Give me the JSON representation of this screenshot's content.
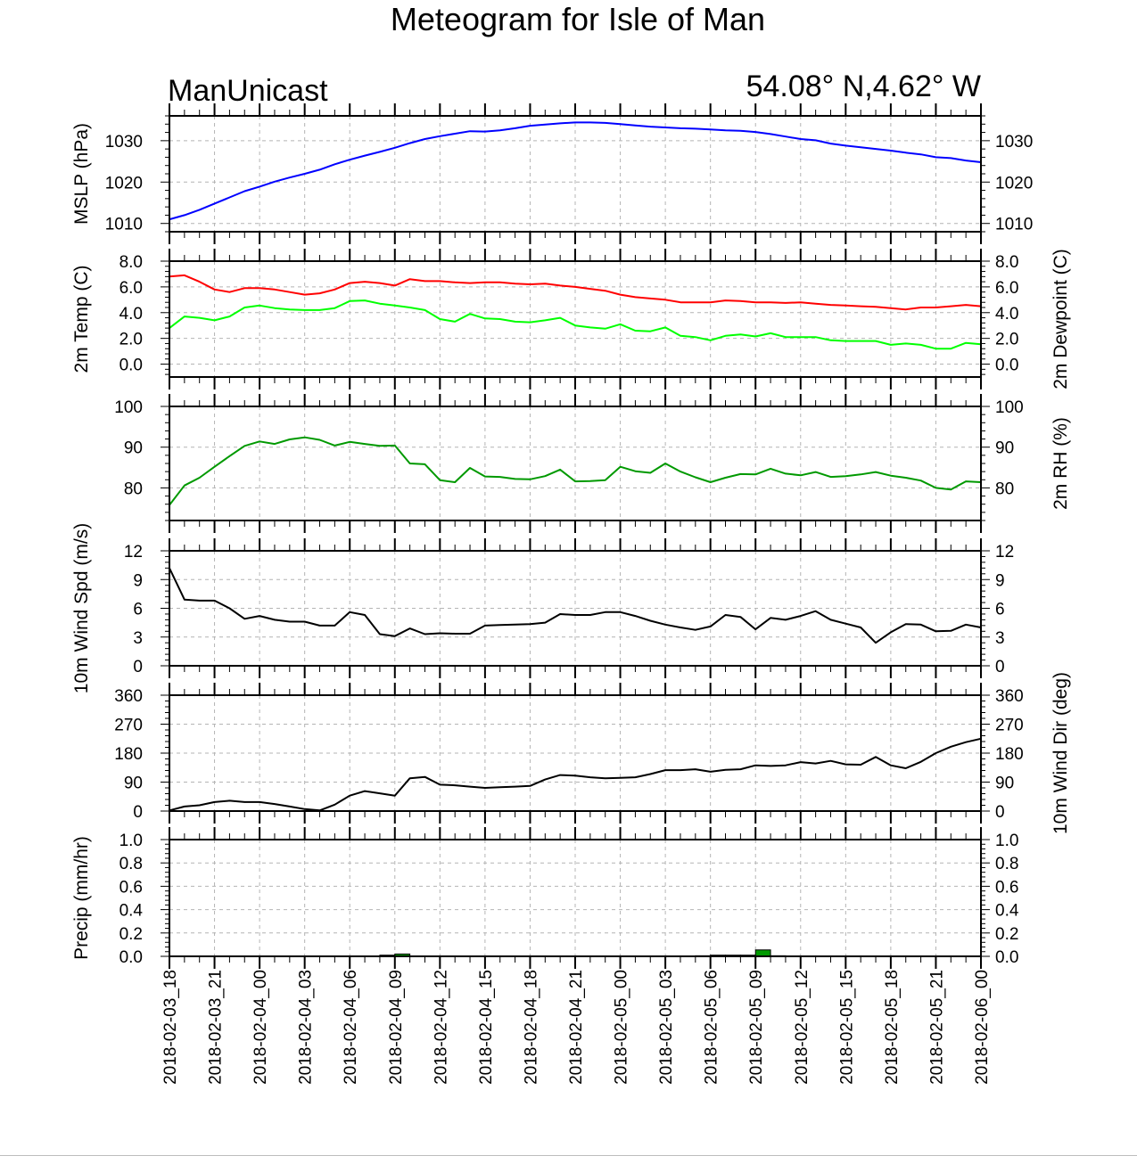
{
  "title": "Meteogram for Isle of Man",
  "model": "ManUnicast",
  "location": "54.08° N,4.62° W",
  "x_tick_labels": [
    "2018-02-03_18",
    "2018-02-03_21",
    "2018-02-04_00",
    "2018-02-04_03",
    "2018-02-04_06",
    "2018-02-04_09",
    "2018-02-04_12",
    "2018-02-04_15",
    "2018-02-04_18",
    "2018-02-04_21",
    "2018-02-05_00",
    "2018-02-05_03",
    "2018-02-05_06",
    "2018-02-05_09",
    "2018-02-05_12",
    "2018-02-05_15",
    "2018-02-05_18",
    "2018-02-05_21",
    "2018-02-06_00"
  ],
  "chart_data": [
    {
      "type": "line",
      "panel": "mslp",
      "ylabel": "MSLP (hPa)",
      "ylim": [
        1008,
        1036
      ],
      "ticks": [
        1010,
        1020,
        1030
      ],
      "tick_labels": [
        "1010",
        "1020",
        "1030"
      ],
      "grid": true,
      "x_hours": [
        0,
        1,
        2,
        3,
        4,
        5,
        6,
        7,
        8,
        9,
        10,
        11,
        12,
        13,
        14,
        15,
        16,
        17,
        18,
        19,
        20,
        21,
        22,
        23,
        24,
        25,
        26,
        27,
        28,
        29,
        30,
        31,
        32,
        33,
        34,
        35,
        36,
        37,
        38,
        39,
        40,
        41,
        42,
        43,
        44,
        45,
        46,
        47,
        48,
        49,
        50,
        51,
        52,
        53,
        54
      ],
      "series": [
        {
          "color": "#0000ff",
          "values": [
            1011,
            1012,
            1013.3,
            1014.8,
            1016.3,
            1017.8,
            1018.9,
            1020.1,
            1021.1,
            1022,
            1023,
            1024.3,
            1025.4,
            1026.4,
            1027.3,
            1028.3,
            1029.4,
            1030.4,
            1031.1,
            1031.7,
            1032.3,
            1032.2,
            1032.5,
            1033,
            1033.6,
            1033.9,
            1034.2,
            1034.4,
            1034.4,
            1034.3,
            1034,
            1033.7,
            1033.4,
            1033.2,
            1033,
            1032.9,
            1032.7,
            1032.5,
            1032.4,
            1032.1,
            1031.6,
            1031,
            1030.4,
            1030.1,
            1029.3,
            1028.8,
            1028.4,
            1028,
            1027.6,
            1027.1,
            1026.7,
            1026,
            1025.8,
            1025.2,
            1024.8
          ]
        }
      ]
    },
    {
      "type": "line",
      "panel": "temp",
      "ylabel": "2m Temp (C)",
      "ylabel_right": "2m Dewpoint (C)",
      "ylim": [
        -1,
        8
      ],
      "ticks": [
        0,
        2,
        4,
        6,
        8
      ],
      "tick_labels": [
        "0.0",
        "2.0",
        "4.0",
        "6.0",
        "8.0"
      ],
      "grid": true,
      "x_hours": [
        0,
        1,
        2,
        3,
        4,
        5,
        6,
        7,
        8,
        9,
        10,
        11,
        12,
        13,
        14,
        15,
        16,
        17,
        18,
        19,
        20,
        21,
        22,
        23,
        24,
        25,
        26,
        27,
        28,
        29,
        30,
        31,
        32,
        33,
        34,
        35,
        36,
        37,
        38,
        39,
        40,
        41,
        42,
        43,
        44,
        45,
        46,
        47,
        48,
        49,
        50,
        51,
        52,
        53,
        54
      ],
      "series": [
        {
          "color": "#ff0000",
          "values": [
            6.8,
            6.9,
            6.4,
            5.8,
            5.6,
            5.9,
            5.9,
            5.8,
            5.6,
            5.4,
            5.5,
            5.8,
            6.3,
            6.4,
            6.3,
            6.1,
            6.6,
            6.45,
            6.45,
            6.35,
            6.3,
            6.35,
            6.35,
            6.25,
            6.2,
            6.25,
            6.1,
            6.0,
            5.85,
            5.7,
            5.4,
            5.2,
            5.1,
            5.0,
            4.8,
            4.8,
            4.8,
            4.95,
            4.9,
            4.8,
            4.8,
            4.75,
            4.8,
            4.7,
            4.6,
            4.55,
            4.5,
            4.45,
            4.35,
            4.25,
            4.4,
            4.4,
            4.5,
            4.6,
            4.5
          ]
        },
        {
          "color": "#00ff00",
          "values": [
            2.8,
            3.7,
            3.6,
            3.4,
            3.7,
            4.4,
            4.55,
            4.35,
            4.25,
            4.2,
            4.2,
            4.35,
            4.9,
            4.95,
            4.7,
            4.55,
            4.4,
            4.2,
            3.5,
            3.3,
            3.9,
            3.55,
            3.5,
            3.3,
            3.25,
            3.4,
            3.6,
            3.0,
            2.85,
            2.75,
            3.1,
            2.6,
            2.55,
            2.85,
            2.2,
            2.1,
            1.85,
            2.2,
            2.3,
            2.15,
            2.4,
            2.1,
            2.1,
            2.1,
            1.85,
            1.8,
            1.8,
            1.8,
            1.5,
            1.6,
            1.5,
            1.2,
            1.2,
            1.65,
            1.55
          ]
        }
      ]
    },
    {
      "type": "line",
      "panel": "rh",
      "ylabel_right": "2m RH (%)",
      "ylim": [
        72,
        100
      ],
      "ticks": [
        80,
        90,
        100
      ],
      "tick_labels": [
        "80",
        "90",
        "100"
      ],
      "grid": true,
      "x_hours": [
        0,
        1,
        2,
        3,
        4,
        5,
        6,
        7,
        8,
        9,
        10,
        11,
        12,
        13,
        14,
        15,
        16,
        17,
        18,
        19,
        20,
        21,
        22,
        23,
        24,
        25,
        26,
        27,
        28,
        29,
        30,
        31,
        32,
        33,
        34,
        35,
        36,
        37,
        38,
        39,
        40,
        41,
        42,
        43,
        44,
        45,
        46,
        47,
        48,
        49,
        50,
        51,
        52,
        53,
        54
      ],
      "series": [
        {
          "color": "#009900",
          "values": [
            75.8,
            80.6,
            82.5,
            85.2,
            87.8,
            90.3,
            91.4,
            90.8,
            91.9,
            92.4,
            91.8,
            90.4,
            91.3,
            90.8,
            90.3,
            90.4,
            86,
            85.8,
            81.9,
            81.4,
            84.9,
            82.8,
            82.7,
            82.2,
            82.1,
            82.9,
            84.5,
            81.6,
            81.7,
            81.9,
            85.2,
            84.1,
            83.7,
            86,
            84,
            82.6,
            81.4,
            82.5,
            83.4,
            83.3,
            84.7,
            83.5,
            83.1,
            83.9,
            82.7,
            82.9,
            83.3,
            83.9,
            83,
            82.5,
            81.8,
            80,
            79.6,
            81.6,
            81.4
          ]
        }
      ]
    },
    {
      "type": "line",
      "panel": "wind_speed",
      "ylabel": "10m Wind Spd (m/s)",
      "ylim": [
        0,
        12
      ],
      "ticks": [
        0,
        3,
        6,
        9,
        12
      ],
      "tick_labels": [
        "0",
        "3",
        "6",
        "9",
        "12"
      ],
      "grid": true,
      "x_hours": [
        0,
        1,
        2,
        3,
        4,
        5,
        6,
        7,
        8,
        9,
        10,
        11,
        12,
        13,
        14,
        15,
        16,
        17,
        18,
        19,
        20,
        21,
        22,
        23,
        24,
        25,
        26,
        27,
        28,
        29,
        30,
        31,
        32,
        33,
        34,
        35,
        36,
        37,
        38,
        39,
        40,
        41,
        42,
        43,
        44,
        45,
        46,
        47,
        48,
        49,
        50,
        51,
        52,
        53,
        54
      ],
      "series": [
        {
          "color": "#000000",
          "values": [
            10.2,
            6.9,
            6.8,
            6.8,
            6,
            4.9,
            5.2,
            4.8,
            4.6,
            4.6,
            4.2,
            4.2,
            5.6,
            5.3,
            3.3,
            3.1,
            3.9,
            3.3,
            3.4,
            3.35,
            3.35,
            4.2,
            4.25,
            4.3,
            4.35,
            4.5,
            5.4,
            5.3,
            5.3,
            5.6,
            5.6,
            5.2,
            4.7,
            4.3,
            4,
            3.75,
            4.1,
            5.3,
            5.1,
            3.8,
            5,
            4.8,
            5.2,
            5.7,
            4.8,
            4.4,
            4,
            2.4,
            3.5,
            4.35,
            4.3,
            3.6,
            3.65,
            4.3,
            4
          ]
        }
      ]
    },
    {
      "type": "line",
      "panel": "wind_dir",
      "ylabel_right": "10m Wind Dir (deg)",
      "ylim": [
        0,
        360
      ],
      "ticks": [
        0,
        90,
        180,
        270,
        360
      ],
      "tick_labels": [
        "0",
        "90",
        "180",
        "270",
        "360"
      ],
      "grid": true,
      "x_hours": [
        0,
        1,
        2,
        3,
        4,
        5,
        6,
        7,
        8,
        9,
        10,
        11,
        12,
        13,
        14,
        15,
        16,
        17,
        18,
        19,
        20,
        21,
        22,
        23,
        24,
        25,
        26,
        27,
        28,
        29,
        30,
        31,
        32,
        33,
        34,
        35,
        36,
        37,
        38,
        39,
        40,
        41,
        42,
        43,
        44,
        45,
        46,
        47,
        48,
        49,
        50,
        51,
        52,
        53,
        54
      ],
      "series": [
        {
          "color": "#000000",
          "values": [
            2,
            14,
            18,
            28,
            32,
            28,
            28,
            22,
            14,
            6,
            2,
            20,
            48,
            62,
            55,
            48,
            102,
            106,
            82,
            80,
            76,
            72,
            74,
            76,
            78,
            98,
            112,
            110,
            105,
            102,
            103,
            105,
            115,
            127,
            127,
            130,
            122,
            128,
            130,
            142,
            140,
            142,
            152,
            148,
            156,
            145,
            144,
            168,
            142,
            133,
            153,
            180,
            200,
            214,
            225
          ]
        }
      ]
    },
    {
      "type": "bar",
      "panel": "precip",
      "ylabel": "Precip (mm/hr)",
      "ylim": [
        0,
        1
      ],
      "ticks": [
        0,
        0.2,
        0.4,
        0.6,
        0.8,
        1.0
      ],
      "tick_labels": [
        "0.0",
        "0.2",
        "0.4",
        "0.6",
        "0.8",
        "1.0"
      ],
      "grid": true,
      "x_hours": [
        14.5,
        15.5,
        35.5,
        36.5,
        37.5,
        38.5,
        39.5,
        40.5
      ],
      "series": [
        {
          "color": "#009900",
          "values": [
            0.01,
            0.02,
            0.005,
            0.01,
            0.01,
            0.01,
            0.055,
            0.005
          ]
        }
      ]
    }
  ]
}
